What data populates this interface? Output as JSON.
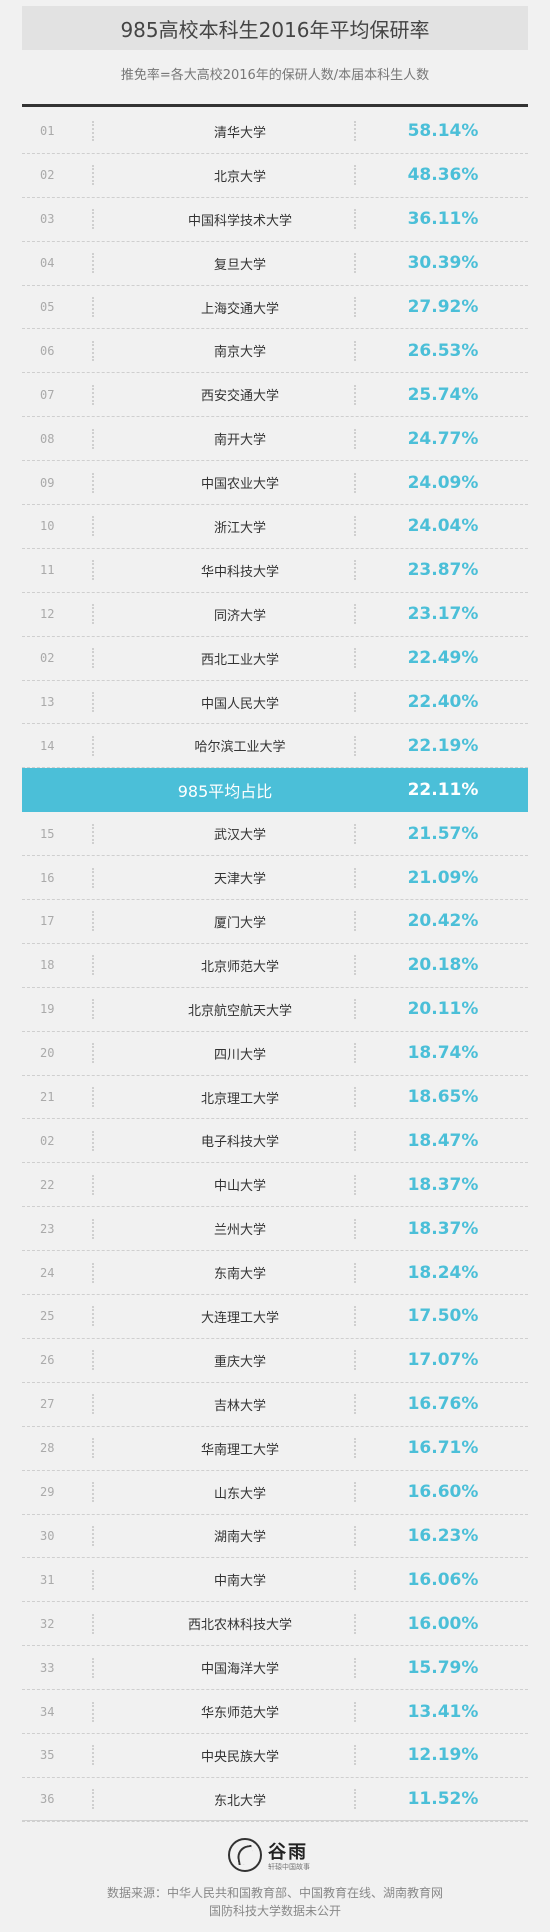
{
  "header": {
    "title": "985高校本科生2016年平均保研率",
    "subtitle": "推免率=各大高校2016年的保研人数/本届本科生人数"
  },
  "chart_data": {
    "type": "table",
    "title": "985高校本科生2016年平均保研率",
    "subtitle": "推免率=各大高校2016年的保研人数/本届本科生人数",
    "rows": [
      {
        "rank": "01",
        "name": "清华大学",
        "value": "58.14%"
      },
      {
        "rank": "02",
        "name": "北京大学",
        "value": "48.36%"
      },
      {
        "rank": "03",
        "name": "中国科学技术大学",
        "value": "36.11%"
      },
      {
        "rank": "04",
        "name": "复旦大学",
        "value": "30.39%"
      },
      {
        "rank": "05",
        "name": "上海交通大学",
        "value": "27.92%"
      },
      {
        "rank": "06",
        "name": "南京大学",
        "value": "26.53%"
      },
      {
        "rank": "07",
        "name": "西安交通大学",
        "value": "25.74%"
      },
      {
        "rank": "08",
        "name": "南开大学",
        "value": "24.77%"
      },
      {
        "rank": "09",
        "name": "中国农业大学",
        "value": "24.09%"
      },
      {
        "rank": "10",
        "name": "浙江大学",
        "value": "24.04%"
      },
      {
        "rank": "11",
        "name": "华中科技大学",
        "value": "23.87%"
      },
      {
        "rank": "12",
        "name": "同济大学",
        "value": "23.17%"
      },
      {
        "rank": "02",
        "name": "西北工业大学",
        "value": "22.49%"
      },
      {
        "rank": "13",
        "name": "中国人民大学",
        "value": "22.40%"
      },
      {
        "rank": "14",
        "name": "哈尔滨工业大学",
        "value": "22.19%"
      },
      {
        "rank": "",
        "name": "985平均占比",
        "value": "22.11%",
        "highlight": true
      },
      {
        "rank": "15",
        "name": "武汉大学",
        "value": "21.57%"
      },
      {
        "rank": "16",
        "name": "天津大学",
        "value": "21.09%"
      },
      {
        "rank": "17",
        "name": "厦门大学",
        "value": "20.42%"
      },
      {
        "rank": "18",
        "name": "北京师范大学",
        "value": "20.18%"
      },
      {
        "rank": "19",
        "name": "北京航空航天大学",
        "value": "20.11%"
      },
      {
        "rank": "20",
        "name": "四川大学",
        "value": "18.74%"
      },
      {
        "rank": "21",
        "name": "北京理工大学",
        "value": "18.65%"
      },
      {
        "rank": "02",
        "name": "电子科技大学",
        "value": "18.47%"
      },
      {
        "rank": "22",
        "name": "中山大学",
        "value": "18.37%"
      },
      {
        "rank": "23",
        "name": "兰州大学",
        "value": "18.37%"
      },
      {
        "rank": "24",
        "name": "东南大学",
        "value": "18.24%"
      },
      {
        "rank": "25",
        "name": "大连理工大学",
        "value": "17.50%"
      },
      {
        "rank": "26",
        "name": "重庆大学",
        "value": "17.07%"
      },
      {
        "rank": "27",
        "name": "吉林大学",
        "value": "16.76%"
      },
      {
        "rank": "28",
        "name": "华南理工大学",
        "value": "16.71%"
      },
      {
        "rank": "29",
        "name": "山东大学",
        "value": "16.60%"
      },
      {
        "rank": "30",
        "name": "湖南大学",
        "value": "16.23%"
      },
      {
        "rank": "31",
        "name": "中南大学",
        "value": "16.06%"
      },
      {
        "rank": "32",
        "name": "西北农林科技大学",
        "value": "16.00%"
      },
      {
        "rank": "33",
        "name": "中国海洋大学",
        "value": "15.79%"
      },
      {
        "rank": "34",
        "name": "华东师范大学",
        "value": "13.41%"
      },
      {
        "rank": "35",
        "name": "中央民族大学",
        "value": "12.19%"
      },
      {
        "rank": "36",
        "name": "东北大学",
        "value": "11.52%"
      }
    ]
  },
  "footer": {
    "logo_name": "谷雨",
    "logo_sub": "轩辕中国故事",
    "source_line1": "数据来源：中华人民共和国教育部、中国教育在线、湖南教育网",
    "source_line2": "国防科技大学数据未公开"
  },
  "colors": {
    "accent": "#4bbfd8",
    "title_bg": "#e2e2e2",
    "page_bg": "#f1f1f1"
  },
  "icons": {
    "logo": "guyu-logo-icon"
  }
}
